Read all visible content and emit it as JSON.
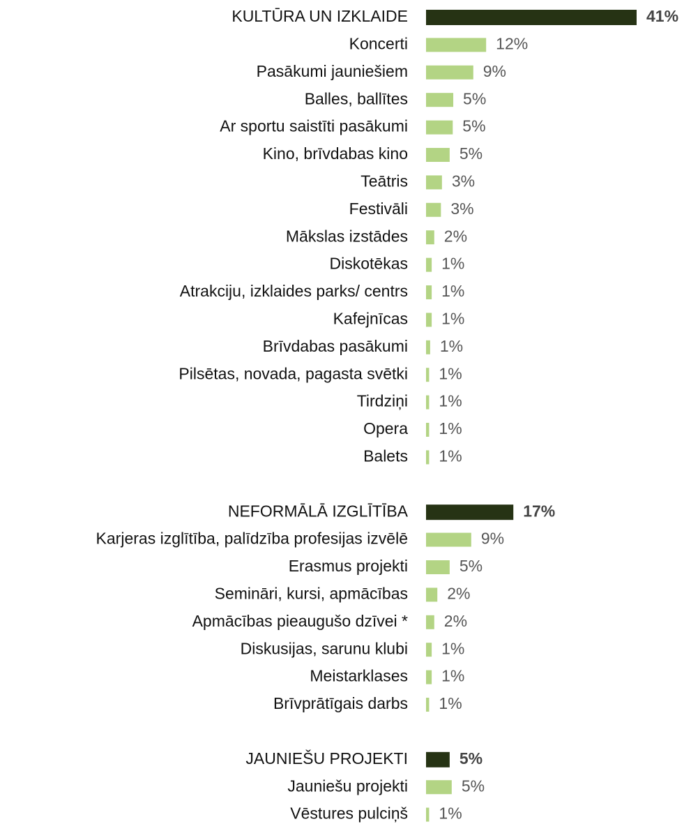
{
  "chart_data": {
    "type": "bar",
    "header_color": "#263314",
    "color": "#b3d484",
    "groups": [
      {
        "name": "KULTŪRA UN IZKLAIDE",
        "value": 41,
        "value_label": "41%",
        "categories": [
          "Koncerti",
          "Pasākumi jauniešiem",
          "Balles, ballītes",
          "Ar sportu saistīti pasākumi",
          "Kino, brīvdabas kino",
          "Teātris",
          "Festivāli",
          "Mākslas izstādes",
          "Diskotēkas",
          "Atrakciju, izklaides parks/ centrs",
          "Kafejnīcas",
          "Brīvdabas pasākumi",
          "Pilsētas, novada, pagasta svētki",
          "Tirdziņi",
          "Opera",
          "Balets"
        ],
        "values": [
          11.7,
          9.2,
          5.3,
          5.2,
          4.6,
          3.1,
          2.9,
          1.6,
          1.1,
          1.1,
          1.1,
          0.8,
          0.6,
          0.6,
          0.6,
          0.6
        ],
        "value_labels": [
          "12%",
          "9%",
          "5%",
          "5%",
          "5%",
          "3%",
          "3%",
          "2%",
          "1%",
          "1%",
          "1%",
          "1%",
          "1%",
          "1%",
          "1%",
          "1%"
        ]
      },
      {
        "name": "NEFORMĀLĀ IZGLĪTĪBA",
        "value": 17,
        "value_label": "17%",
        "categories": [
          "Karjeras izglītība, palīdzība profesijas izvēlē",
          "Erasmus projekti",
          "Semināri, kursi, apmācības",
          "Apmācības pieaugušo dzīvei *",
          "Diskusijas, sarunu klubi",
          "Meistarklases",
          "Brīvprātīgais darbs"
        ],
        "values": [
          8.8,
          4.6,
          2.2,
          1.6,
          1.1,
          1.1,
          0.6
        ],
        "value_labels": [
          "9%",
          "5%",
          "2%",
          "2%",
          "1%",
          "1%",
          "1%"
        ]
      },
      {
        "name": "JAUNIEŠU PROJEKTI",
        "value": 4.6,
        "value_label": "5%",
        "categories": [
          "Jauniešu projekti",
          "Vēstures pulciņš"
        ],
        "values": [
          5.0,
          0.6
        ],
        "value_labels": [
          "5%",
          "1%"
        ]
      }
    ]
  }
}
